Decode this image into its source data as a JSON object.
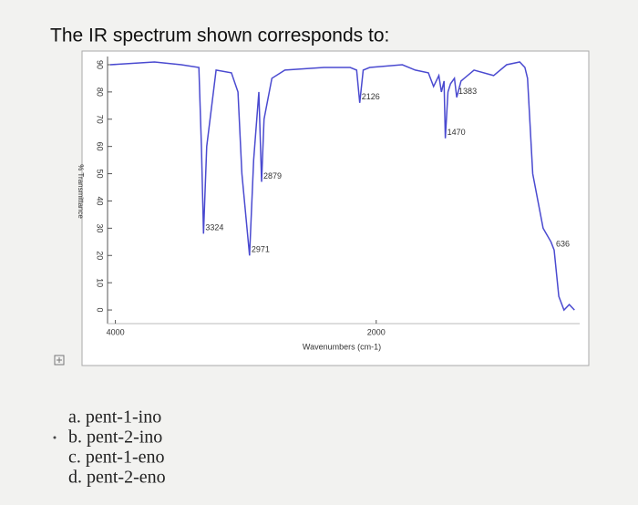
{
  "question": "The IR spectrum shown corresponds to:",
  "chart_data": {
    "type": "line",
    "xlabel": "Wavenumbers (cm-1)",
    "ylabel": "% Transmittance",
    "xlim": [
      4060,
      440
    ],
    "ylim": [
      -5,
      93
    ],
    "xticks": [
      4000,
      2000
    ],
    "yticks": [
      0,
      10,
      20,
      30,
      40,
      50,
      60,
      70,
      80,
      90
    ],
    "series": [
      {
        "color": "#4a4ad0",
        "x": [
          4040,
          3700,
          3495,
          3360,
          3340,
          3324,
          3300,
          3228,
          3110,
          3060,
          3030,
          2971,
          2940,
          2900,
          2879,
          2860,
          2800,
          2700,
          2400,
          2200,
          2150,
          2126,
          2100,
          2050,
          1800,
          1700,
          1600,
          1560,
          1520,
          1500,
          1480,
          1470,
          1450,
          1430,
          1400,
          1383,
          1350,
          1250,
          1100,
          1000,
          900,
          860,
          840,
          800,
          720,
          660,
          636,
          600,
          560,
          520,
          480
        ],
        "values": [
          90,
          91,
          90,
          89,
          60,
          28,
          60,
          88,
          87,
          80,
          50,
          20,
          55,
          80,
          47,
          70,
          85,
          88,
          89,
          89,
          88,
          76,
          88,
          89,
          90,
          88,
          87,
          82,
          86,
          80,
          84,
          63,
          80,
          83,
          85,
          78,
          84,
          88,
          86,
          90,
          91,
          89,
          85,
          50,
          30,
          25,
          22,
          5,
          0,
          2,
          0
        ]
      }
    ],
    "annotations": [
      {
        "text": "3324",
        "x": 3324,
        "y": 28
      },
      {
        "text": "2971",
        "x": 2971,
        "y": 20
      },
      {
        "text": "2879",
        "x": 2879,
        "y": 47
      },
      {
        "text": "2126",
        "x": 2126,
        "y": 76
      },
      {
        "text": "1470",
        "x": 1470,
        "y": 63
      },
      {
        "text": "1383",
        "x": 1383,
        "y": 78
      },
      {
        "text": "636",
        "x": 636,
        "y": 22
      }
    ]
  },
  "options": [
    "a. pent-1-ino",
    "b. pent-2-ino",
    "c. pent-1-eno",
    "d. pent-2-eno"
  ]
}
